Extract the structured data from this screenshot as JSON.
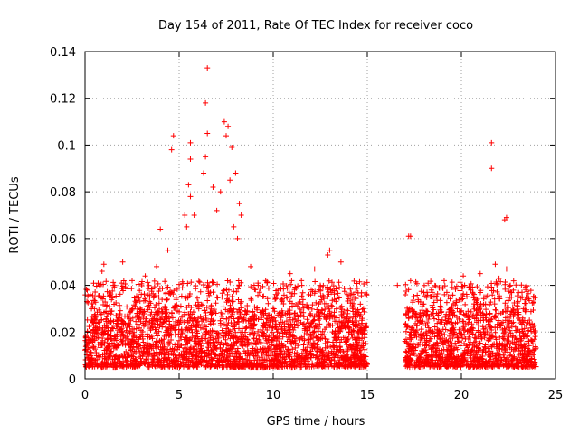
{
  "chart_data": {
    "type": "scatter",
    "title": "Day 154 of 2011, Rate Of TEC Index for receiver coco",
    "xlabel": "GPS time / hours",
    "ylabel": "ROTI / TECUs",
    "xlim": [
      0,
      25
    ],
    "ylim": [
      0,
      0.14
    ],
    "xticks": [
      "0",
      "5",
      "10",
      "15",
      "20",
      "25"
    ],
    "yticks": [
      "0",
      "0.02",
      "0.04",
      "0.06",
      "0.08",
      "0.1",
      "0.12",
      "0.14"
    ],
    "marker": "+",
    "color": "#ff0000",
    "grid": true,
    "series": [
      {
        "name": "ROTI",
        "dense_bands": [
          {
            "x": [
              0,
              15
            ],
            "y": [
              0.005,
              0.03
            ]
          },
          {
            "x": [
              17,
              24
            ],
            "y": [
              0.005,
              0.03
            ]
          }
        ],
        "points": [
          [
            6.5,
            0.133
          ],
          [
            6.4,
            0.118
          ],
          [
            7.4,
            0.11
          ],
          [
            7.6,
            0.108
          ],
          [
            7.5,
            0.104
          ],
          [
            4.7,
            0.104
          ],
          [
            4.6,
            0.098
          ],
          [
            5.6,
            0.101
          ],
          [
            6.5,
            0.105
          ],
          [
            21.6,
            0.101
          ],
          [
            21.6,
            0.09
          ],
          [
            22.3,
            0.068
          ],
          [
            22.4,
            0.069
          ],
          [
            17.3,
            0.061
          ],
          [
            17.2,
            0.061
          ],
          [
            17.3,
            0.042
          ],
          [
            16.6,
            0.04
          ],
          [
            7.8,
            0.099
          ],
          [
            8.0,
            0.088
          ],
          [
            8.2,
            0.075
          ],
          [
            7.7,
            0.085
          ],
          [
            6.3,
            0.088
          ],
          [
            6.4,
            0.095
          ],
          [
            5.6,
            0.094
          ],
          [
            5.5,
            0.083
          ],
          [
            5.6,
            0.078
          ],
          [
            5.8,
            0.07
          ],
          [
            5.4,
            0.065
          ],
          [
            7.2,
            0.08
          ],
          [
            4.0,
            0.064
          ],
          [
            4.4,
            0.055
          ],
          [
            5.3,
            0.07
          ],
          [
            6.8,
            0.082
          ],
          [
            7.9,
            0.065
          ],
          [
            8.1,
            0.06
          ],
          [
            8.3,
            0.07
          ],
          [
            7.0,
            0.072
          ],
          [
            13.0,
            0.055
          ],
          [
            12.9,
            0.053
          ],
          [
            13.6,
            0.05
          ],
          [
            12.2,
            0.047
          ],
          [
            22.4,
            0.047
          ],
          [
            21.8,
            0.049
          ],
          [
            21.0,
            0.045
          ],
          [
            22.0,
            0.043
          ],
          [
            20.1,
            0.044
          ],
          [
            19.0,
            0.039
          ],
          [
            19.1,
            0.036
          ],
          [
            18.0,
            0.032
          ],
          [
            10.9,
            0.045
          ],
          [
            11.5,
            0.042
          ],
          [
            9.6,
            0.042
          ],
          [
            8.8,
            0.048
          ],
          [
            2.0,
            0.05
          ],
          [
            1.0,
            0.049
          ],
          [
            3.2,
            0.044
          ],
          [
            0.9,
            0.046
          ],
          [
            1.5,
            0.04
          ],
          [
            2.5,
            0.042
          ],
          [
            3.8,
            0.048
          ],
          [
            9.2,
            0.04
          ],
          [
            12.5,
            0.04
          ],
          [
            14.0,
            0.035
          ],
          [
            14.8,
            0.03
          ],
          [
            11.9,
            0.036
          ],
          [
            10.2,
            0.035
          ],
          [
            20.5,
            0.038
          ],
          [
            21.2,
            0.035
          ],
          [
            22.6,
            0.04
          ],
          [
            23.0,
            0.031
          ],
          [
            23.3,
            0.03
          ],
          [
            23.8,
            0.015
          ],
          [
            18.5,
            0.02
          ],
          [
            17.5,
            0.028
          ],
          [
            17.8,
            0.025
          ],
          [
            19.6,
            0.02
          ],
          [
            20.8,
            0.026
          ],
          [
            0.1,
            0.015
          ],
          [
            0.3,
            0.02
          ],
          [
            0.5,
            0.018
          ],
          [
            0.2,
            0.007
          ]
        ]
      }
    ]
  }
}
